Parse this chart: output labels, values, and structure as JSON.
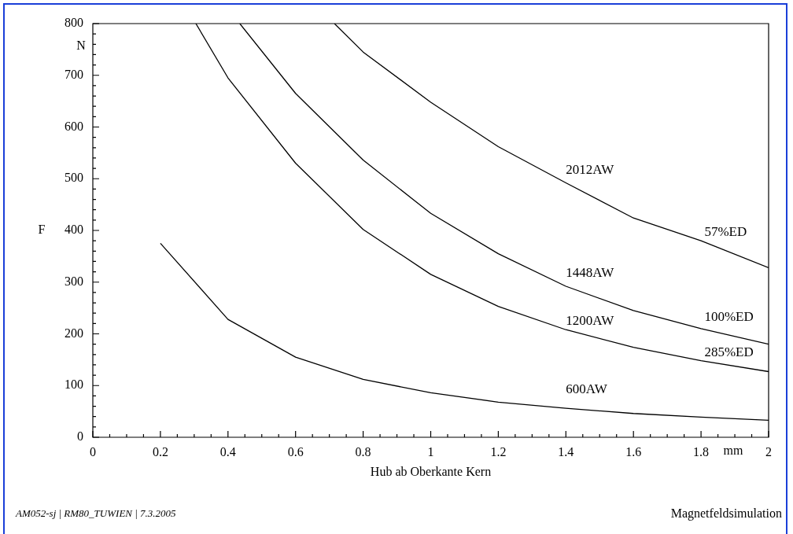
{
  "chart_data": {
    "type": "line",
    "xlabel": "Hub ab Oberkante Kern",
    "ylabel": "F",
    "xlim": [
      0,
      2
    ],
    "ylim": [
      0,
      800
    ],
    "xticks": [
      0,
      {
        "value": 0.05,
        "label": null
      },
      {
        "value": 0.1,
        "label": null
      },
      {
        "value": 0.15,
        "label": null
      },
      0.2,
      {
        "value": 0.25,
        "label": null
      },
      {
        "value": 0.3,
        "label": null
      },
      {
        "value": 0.35,
        "label": null
      },
      0.4,
      {
        "value": 0.45,
        "label": null
      },
      {
        "value": 0.5,
        "label": null
      },
      {
        "value": 0.55,
        "label": null
      },
      0.6,
      {
        "value": 0.65,
        "label": null
      },
      {
        "value": 0.7,
        "label": null
      },
      {
        "value": 0.75,
        "label": null
      },
      0.8,
      {
        "value": 0.85,
        "label": null
      },
      {
        "value": 0.9,
        "label": null
      },
      {
        "value": 0.95,
        "label": null
      },
      1,
      {
        "value": 1.05,
        "label": null
      },
      {
        "value": 1.1,
        "label": null
      },
      {
        "value": 1.15,
        "label": null
      },
      1.2,
      {
        "value": 1.25,
        "label": null
      },
      {
        "value": 1.3,
        "label": null
      },
      {
        "value": 1.35,
        "label": null
      },
      1.4,
      {
        "value": 1.45,
        "label": null
      },
      {
        "value": 1.5,
        "label": null
      },
      {
        "value": 1.55,
        "label": null
      },
      1.6,
      {
        "value": 1.65,
        "label": null
      },
      {
        "value": 1.7,
        "label": null
      },
      {
        "value": 1.75,
        "label": null
      },
      1.8,
      {
        "value": 1.85,
        "label": null
      },
      {
        "value": 1.9,
        "label": null
      },
      {
        "value": 1.95,
        "label": null
      },
      2
    ],
    "yticks": [
      0,
      {
        "value": 20,
        "label": null
      },
      {
        "value": 40,
        "label": null
      },
      {
        "value": 60,
        "label": null
      },
      {
        "value": 80,
        "label": null
      },
      100,
      {
        "value": 120,
        "label": null
      },
      {
        "value": 140,
        "label": null
      },
      {
        "value": 160,
        "label": null
      },
      {
        "value": 180,
        "label": null
      },
      200,
      {
        "value": 220,
        "label": null
      },
      {
        "value": 240,
        "label": null
      },
      {
        "value": 260,
        "label": null
      },
      {
        "value": 280,
        "label": null
      },
      300,
      {
        "value": 320,
        "label": null
      },
      {
        "value": 340,
        "label": null
      },
      {
        "value": 360,
        "label": null
      },
      {
        "value": 380,
        "label": null
      },
      400,
      {
        "value": 420,
        "label": null
      },
      {
        "value": 440,
        "label": null
      },
      {
        "value": 460,
        "label": null
      },
      {
        "value": 480,
        "label": null
      },
      500,
      {
        "value": 520,
        "label": null
      },
      {
        "value": 540,
        "label": null
      },
      {
        "value": 560,
        "label": null
      },
      {
        "value": 580,
        "label": null
      },
      600,
      {
        "value": 620,
        "label": null
      },
      {
        "value": 640,
        "label": null
      },
      {
        "value": 660,
        "label": null
      },
      {
        "value": 680,
        "label": null
      },
      700,
      {
        "value": 720,
        "label": null
      },
      {
        "value": 740,
        "label": null
      },
      {
        "value": 760,
        "label": null
      },
      {
        "value": 780,
        "label": null
      },
      800
    ],
    "grid": false,
    "legend": false,
    "marker": "none",
    "line_style": "solid",
    "series": [
      {
        "color": "#000000",
        "x": [
          0.2,
          0.4,
          0.6,
          0.8,
          1,
          1.2,
          1.4,
          1.6,
          1.8,
          2
        ],
        "values": [
          375,
          228,
          155,
          112,
          86,
          68,
          56,
          46,
          39,
          33
        ]
      },
      {
        "color": "#000000",
        "x": [
          0.305,
          0.4,
          0.6,
          0.8,
          1,
          1.2,
          1.4,
          1.6,
          1.8,
          2
        ],
        "values": [
          800,
          695,
          530,
          402,
          315,
          253,
          208,
          174,
          148,
          127
        ]
      },
      {
        "color": "#000000",
        "x": [
          0.435,
          0.6,
          0.8,
          1,
          1.2,
          1.4,
          1.6,
          1.8,
          2
        ],
        "values": [
          800,
          665,
          536,
          433,
          355,
          292,
          245,
          210,
          180
        ]
      },
      {
        "color": "#000000",
        "x": [
          0.715,
          0.8,
          1,
          1.2,
          1.4,
          1.6,
          1.8,
          2
        ],
        "values": [
          800,
          745,
          648,
          562,
          492,
          424,
          380,
          328
        ]
      }
    ],
    "annotations": [
      "N",
      "mm",
      "AM052-sj | RM80_TUWIEN | 7.3.2005",
      "Magnetfeldsimulation",
      "2012AW",
      "57%ED",
      "1448AW",
      "100%ED",
      "1200AW",
      "285%ED",
      "600AW"
    ]
  }
}
